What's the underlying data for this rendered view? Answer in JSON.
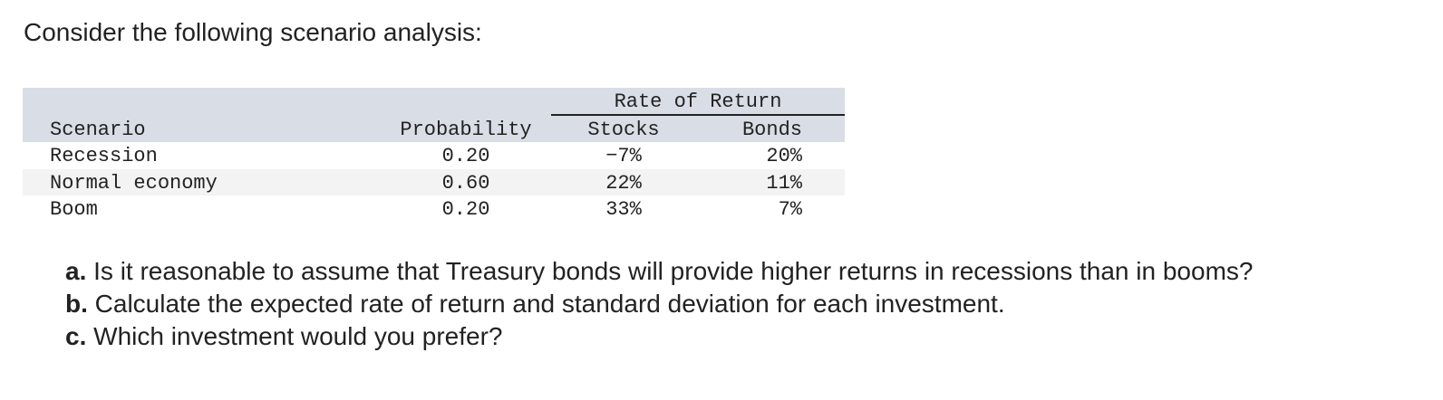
{
  "intro": "Consider the following scenario analysis:",
  "table": {
    "group_header": "Rate of Return",
    "columns": [
      "Scenario",
      "Probability",
      "Stocks",
      "Bonds"
    ],
    "rows": [
      [
        "Recession",
        "0.20",
        "−7%",
        "20%"
      ],
      [
        "Normal economy",
        "0.60",
        "22%",
        "11%"
      ],
      [
        "Boom",
        "0.20",
        "33%",
        "7%"
      ]
    ]
  },
  "questions": [
    {
      "label": "a.",
      "text": "Is it reasonable to assume that Treasury bonds will provide higher returns in recessions than in booms?"
    },
    {
      "label": "b.",
      "text": "Calculate the expected rate of return and standard deviation for each investment."
    },
    {
      "label": "c.",
      "text": "Which investment would you prefer?"
    }
  ]
}
